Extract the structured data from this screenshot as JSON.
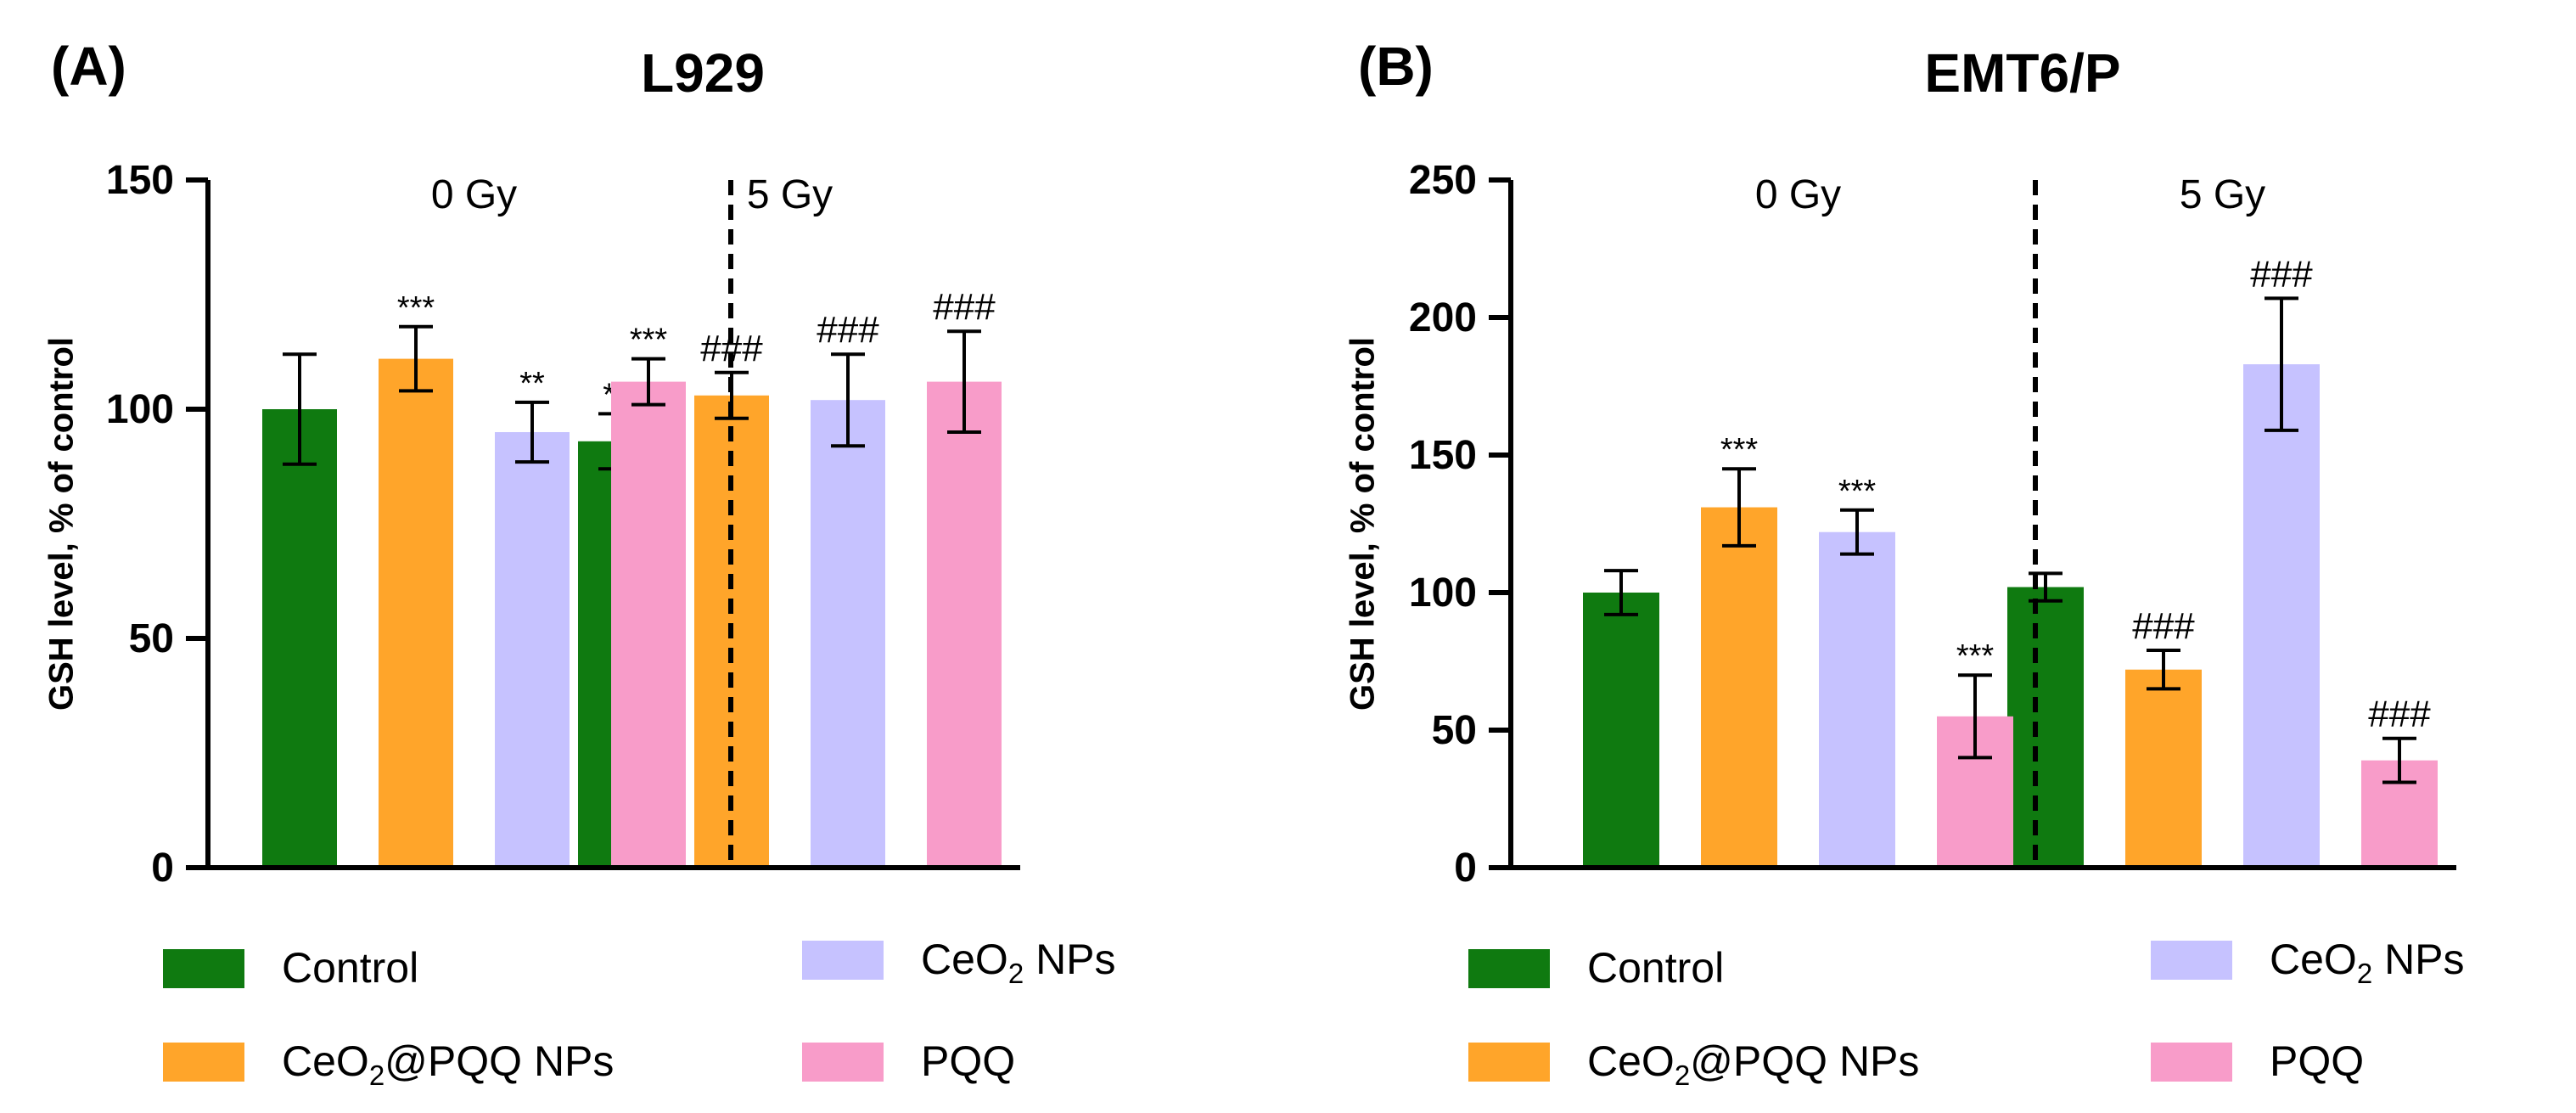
{
  "colors": {
    "Control": "#0f7a10",
    "CeO2@PQQ NPs": "#ffa52a",
    "CeO2 NPs": "#c6c2ff",
    "PQQ": "#f89cc9",
    "axis": "#000000"
  },
  "chart_data": [
    {
      "type": "bar",
      "panel_label": "(A)",
      "title": "L929",
      "ylabel": "GSH level, % of control",
      "ylim": [
        0,
        150
      ],
      "yticks": [
        "0",
        "50",
        "100",
        "150"
      ],
      "groups": [
        "0 Gy",
        "5 Gy"
      ],
      "series": [
        {
          "name": "Control",
          "values": [
            100,
            93
          ],
          "errors": [
            12,
            6
          ],
          "marks": [
            "",
            "**"
          ]
        },
        {
          "name": "CeO2@PQQ NPs",
          "values": [
            111,
            103
          ],
          "errors": [
            7,
            5
          ],
          "marks": [
            "***",
            "###"
          ]
        },
        {
          "name": "CeO2 NPs",
          "values": [
            95,
            102
          ],
          "errors": [
            6.5,
            10
          ],
          "marks": [
            "**",
            "###"
          ]
        },
        {
          "name": "PQQ",
          "values": [
            106,
            106
          ],
          "errors": [
            5,
            11
          ],
          "marks": [
            "***",
            "###"
          ]
        }
      ]
    },
    {
      "type": "bar",
      "panel_label": "(B)",
      "title": "EMT6/P",
      "ylabel": "GSH level, % of control",
      "ylim": [
        0,
        250
      ],
      "yticks": [
        "0",
        "50",
        "100",
        "150",
        "200",
        "250"
      ],
      "groups": [
        "0 Gy",
        "5 Gy"
      ],
      "series": [
        {
          "name": "Control",
          "values": [
            100,
            102
          ],
          "errors": [
            8,
            5
          ],
          "marks": [
            "",
            ""
          ]
        },
        {
          "name": "CeO2@PQQ NPs",
          "values": [
            131,
            72
          ],
          "errors": [
            14,
            7
          ],
          "marks": [
            "***",
            "###"
          ]
        },
        {
          "name": "CeO2 NPs",
          "values": [
            122,
            183
          ],
          "errors": [
            8,
            24
          ],
          "marks": [
            "***",
            "###"
          ]
        },
        {
          "name": "PQQ",
          "values": [
            55,
            39
          ],
          "errors": [
            15,
            8
          ],
          "marks": [
            "***",
            "###"
          ]
        }
      ]
    }
  ]
}
